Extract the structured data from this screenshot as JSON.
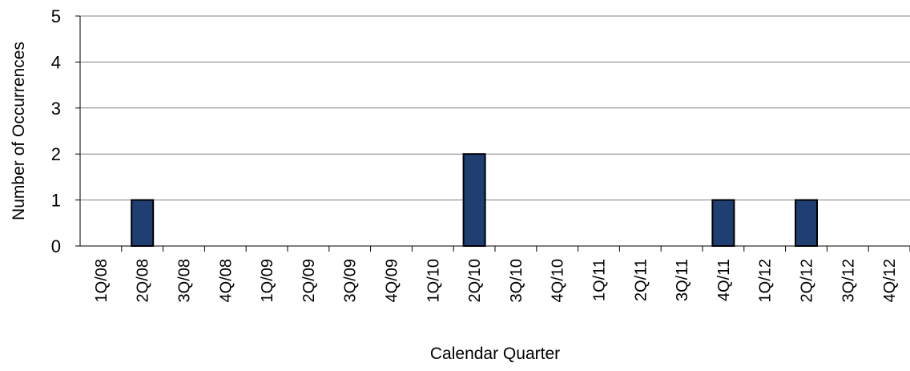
{
  "chart_data": {
    "type": "bar",
    "title": "",
    "xlabel": "Calendar Quarter",
    "ylabel": "Number of Occurrences",
    "ylim": [
      0,
      5
    ],
    "yticks": [
      "0",
      "1",
      "2",
      "3",
      "4",
      "5"
    ],
    "grid": true,
    "legend": "none",
    "categories": [
      "1Q/08",
      "2Q/08",
      "3Q/08",
      "4Q/08",
      "1Q/09",
      "2Q/09",
      "3Q/09",
      "4Q/09",
      "1Q/10",
      "2Q/10",
      "3Q/10",
      "4Q/10",
      "1Q/11",
      "2Q/11",
      "3Q/11",
      "4Q/11",
      "1Q/12",
      "2Q/12",
      "3Q/12",
      "4Q/12"
    ],
    "values": [
      0,
      1,
      0,
      0,
      0,
      0,
      0,
      0,
      0,
      2,
      0,
      0,
      0,
      0,
      0,
      1,
      0,
      1,
      0,
      0
    ],
    "colors": {
      "bar": "#1f3f73",
      "bar_edge": "#000000",
      "grid": "#808080"
    }
  }
}
